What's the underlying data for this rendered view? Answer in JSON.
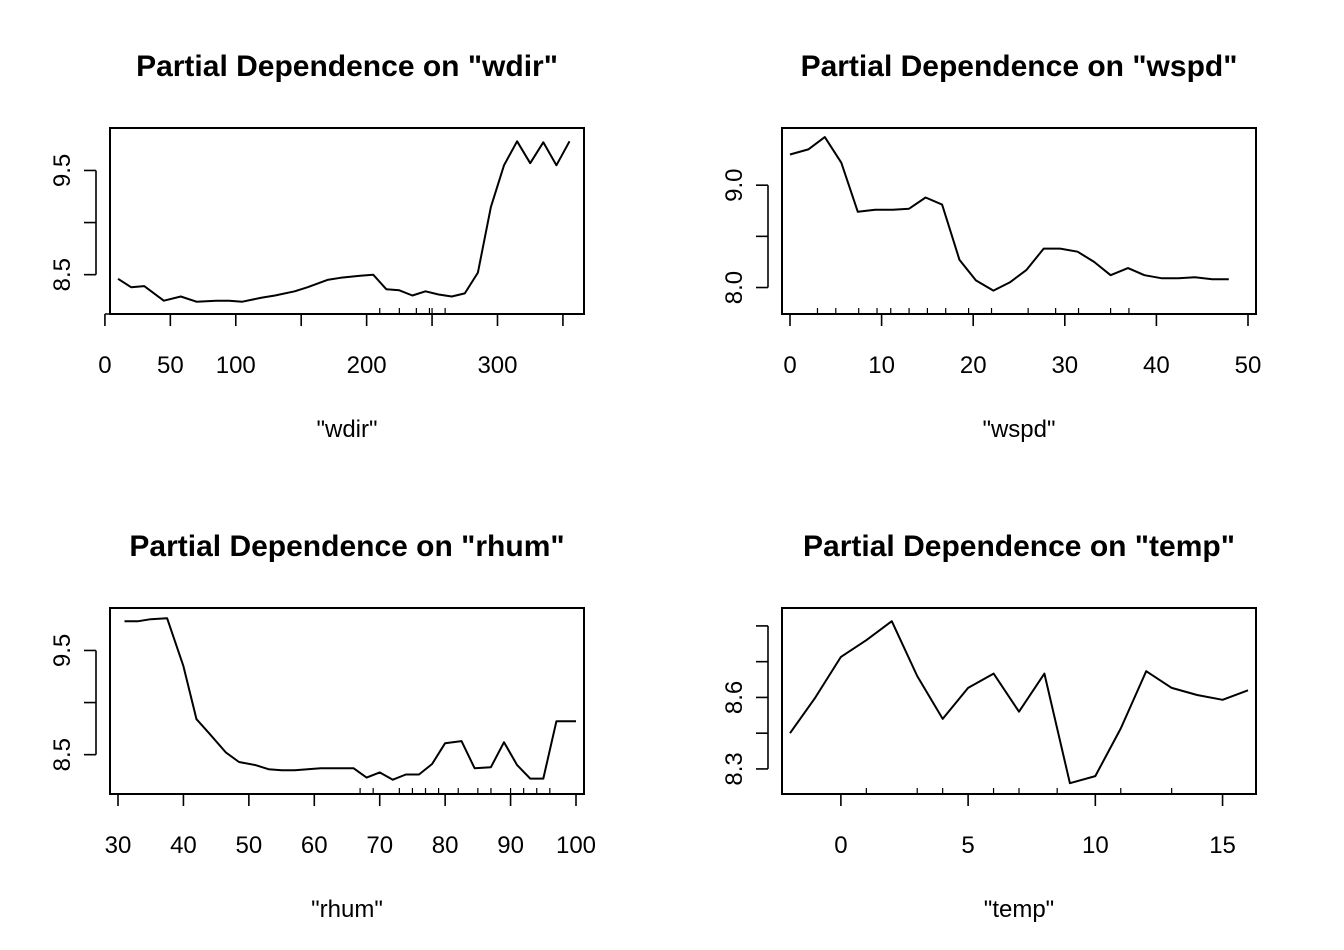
{
  "chart_data": [
    {
      "type": "line",
      "title": "Partial Dependence on \"wdir\"",
      "xlabel": "\"wdir\"",
      "ylabel": "",
      "xlim": [
        10,
        360
      ],
      "ylim": [
        8.18,
        9.85
      ],
      "xticks": [
        0,
        50,
        100,
        200,
        300
      ],
      "xtick_labels": [
        "0",
        "50",
        "100",
        "200",
        "300"
      ],
      "xticks_unlabeled": [
        150,
        250,
        350
      ],
      "yticks": [
        8.5,
        9.0,
        9.5
      ],
      "ytick_labels": [
        "8.5",
        "",
        "9.5"
      ],
      "rug": [
        210,
        225,
        238,
        248,
        250,
        260
      ],
      "x": [
        10,
        20,
        30,
        45,
        58,
        70,
        85,
        95,
        105,
        120,
        130,
        145,
        155,
        170,
        180,
        195,
        205,
        215,
        225,
        235,
        245,
        255,
        265,
        275,
        285,
        295,
        305,
        315,
        325,
        335,
        345,
        355
      ],
      "y": [
        8.46,
        8.38,
        8.39,
        8.25,
        8.29,
        8.24,
        8.25,
        8.25,
        8.24,
        8.28,
        8.3,
        8.34,
        8.38,
        8.45,
        8.47,
        8.49,
        8.5,
        8.36,
        8.35,
        8.3,
        8.34,
        8.31,
        8.29,
        8.32,
        8.52,
        9.15,
        9.55,
        9.78,
        9.57,
        9.77,
        9.55,
        9.78
      ]
    },
    {
      "type": "line",
      "title": "Partial Dependence on \"wspd\"",
      "xlabel": "\"wspd\"",
      "ylabel": "",
      "xlim": [
        0,
        50
      ],
      "ylim": [
        7.8,
        9.5
      ],
      "xticks": [
        0,
        10,
        20,
        30,
        40,
        50
      ],
      "xtick_labels": [
        "0",
        "10",
        "20",
        "30",
        "40",
        "50"
      ],
      "yticks": [
        8.0,
        8.5,
        9.0
      ],
      "ytick_labels": [
        "8.0",
        "",
        "9.0"
      ],
      "rug": [
        3,
        5,
        7.5,
        9.5,
        11,
        13,
        15,
        17,
        19.5,
        22,
        26,
        29,
        31.5,
        35,
        37
      ],
      "x": [
        0,
        2,
        3.8,
        5.6,
        7.4,
        9.3,
        11.2,
        13,
        14.8,
        16.6,
        18.5,
        20.3,
        22.2,
        24,
        25.8,
        27.7,
        29.5,
        31.4,
        33.2,
        35,
        36.9,
        38.7,
        40.6,
        42.4,
        44.2,
        46.1,
        47.9
      ],
      "y": [
        9.3,
        9.35,
        9.47,
        9.22,
        8.74,
        8.76,
        8.76,
        8.77,
        8.88,
        8.81,
        8.27,
        8.07,
        7.97,
        8.05,
        8.17,
        8.38,
        8.38,
        8.35,
        8.25,
        8.12,
        8.19,
        8.12,
        8.09,
        8.09,
        8.1,
        8.08,
        8.08
      ]
    },
    {
      "type": "line",
      "title": "Partial Dependence on \"rhum\"",
      "xlabel": "\"rhum\"",
      "ylabel": "",
      "xlim": [
        30,
        100
      ],
      "ylim": [
        8.18,
        9.85
      ],
      "xticks": [
        30,
        40,
        50,
        60,
        70,
        80,
        90,
        100
      ],
      "xtick_labels": [
        "30",
        "40",
        "50",
        "60",
        "70",
        "80",
        "90",
        "100"
      ],
      "yticks": [
        8.5,
        9.0,
        9.5
      ],
      "ytick_labels": [
        "8.5",
        "",
        "9.5"
      ],
      "rug": [
        67,
        69,
        73,
        75,
        77,
        79,
        82,
        85,
        87,
        90,
        92,
        94,
        96
      ],
      "x": [
        31,
        33,
        35,
        37.5,
        40,
        42,
        44,
        46.5,
        48.5,
        51,
        53,
        55,
        57,
        59,
        61,
        63,
        66,
        68,
        70,
        72,
        74,
        76,
        78,
        80,
        82.5,
        84.5,
        87,
        89,
        91,
        93,
        95,
        97,
        99,
        100
      ],
      "y": [
        9.78,
        9.78,
        9.8,
        9.81,
        9.35,
        8.84,
        8.7,
        8.52,
        8.43,
        8.4,
        8.36,
        8.35,
        8.35,
        8.36,
        8.37,
        8.37,
        8.37,
        8.28,
        8.33,
        8.26,
        8.31,
        8.31,
        8.41,
        8.61,
        8.63,
        8.37,
        8.38,
        8.62,
        8.4,
        8.27,
        8.27,
        8.82,
        8.82,
        8.82
      ]
    },
    {
      "type": "line",
      "title": "Partial Dependence on \"temp\"",
      "xlabel": "\"temp\"",
      "ylabel": "",
      "xlim": [
        -2,
        16
      ],
      "ylim": [
        8.22,
        8.95
      ],
      "xticks": [
        0,
        5,
        10,
        15
      ],
      "xtick_labels": [
        "0",
        "5",
        "10",
        "15"
      ],
      "yticks": [
        8.3,
        8.45,
        8.6,
        8.75,
        8.9
      ],
      "ytick_labels": [
        "8.3",
        "",
        "8.6",
        "",
        ""
      ],
      "rug": [
        1,
        3,
        4,
        6,
        7,
        8.5,
        11,
        13
      ],
      "x": [
        -2,
        -1,
        0,
        1,
        2,
        3,
        4,
        5,
        6,
        7,
        8,
        9,
        10,
        11,
        12,
        13,
        14,
        15,
        16
      ],
      "y": [
        8.45,
        8.6,
        8.77,
        8.84,
        8.92,
        8.69,
        8.51,
        8.64,
        8.7,
        8.54,
        8.7,
        8.24,
        8.27,
        8.47,
        8.71,
        8.64,
        8.61,
        8.59,
        8.63
      ]
    }
  ]
}
